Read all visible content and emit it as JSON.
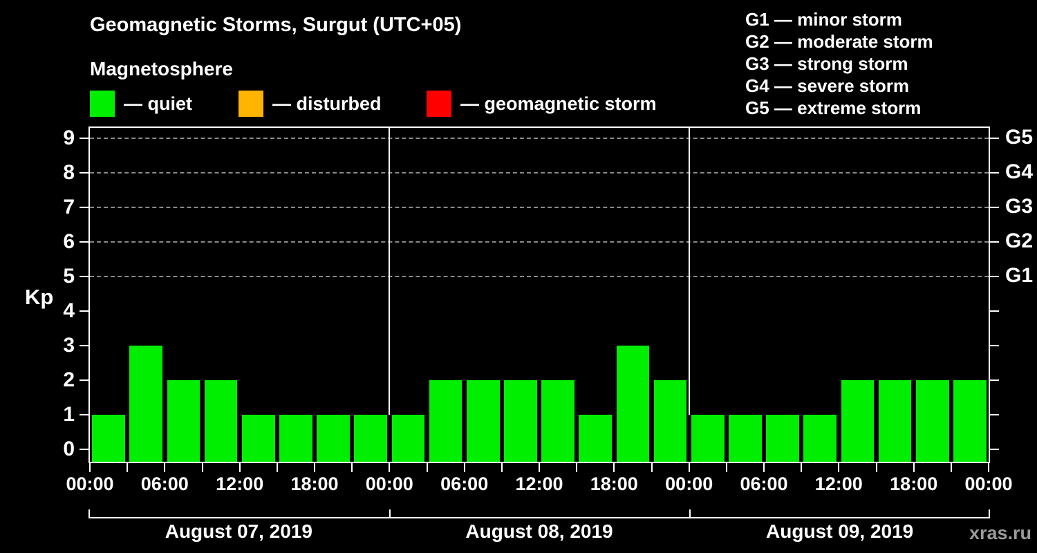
{
  "title": "Geomagnetic Storms, Surgut (UTC+05)",
  "subtitle": "Magnetosphere",
  "legend": {
    "items": [
      {
        "key": "quiet",
        "label": "— quiet",
        "color": "#00EE00"
      },
      {
        "key": "disturbed",
        "label": "— disturbed",
        "color": "#FFB400"
      },
      {
        "key": "storm",
        "label": "— geomagnetic storm",
        "color": "#FF0000"
      }
    ]
  },
  "g_scale": [
    "G1 — minor storm",
    "G2 — moderate storm",
    "G3 — strong storm",
    "G4 — severe storm",
    "G5 — extreme storm"
  ],
  "watermark": "xras.ru",
  "chart_data": {
    "type": "bar",
    "title": "Geomagnetic Storms, Surgut (UTC+05)",
    "xlabel": "",
    "ylabel": "Kp",
    "ylim": [
      0,
      9
    ],
    "y_ticks": [
      0,
      1,
      2,
      3,
      4,
      5,
      6,
      7,
      8,
      9
    ],
    "grid_kp_levels": [
      5,
      6,
      7,
      8,
      9
    ],
    "grid_color": "#8a8a8a",
    "right_axis": [
      {
        "kp": 5,
        "label": "G1"
      },
      {
        "kp": 6,
        "label": "G2"
      },
      {
        "kp": 7,
        "label": "G3"
      },
      {
        "kp": 8,
        "label": "G4"
      },
      {
        "kp": 9,
        "label": "G5"
      }
    ],
    "x_tick_labels": [
      "00:00",
      "06:00",
      "12:00",
      "18:00",
      "00:00",
      "06:00",
      "12:00",
      "18:00",
      "00:00",
      "06:00",
      "12:00",
      "18:00",
      "00:00"
    ],
    "interval_hours": 3,
    "bars_status": "quiet",
    "series": [
      {
        "date": "August 07, 2019",
        "kp_values": [
          1,
          3,
          2,
          2,
          1,
          1,
          1,
          1
        ]
      },
      {
        "date": "August 08, 2019",
        "kp_values": [
          1,
          2,
          2,
          2,
          2,
          1,
          3,
          2
        ]
      },
      {
        "date": "August 09, 2019",
        "kp_values": [
          1,
          1,
          1,
          1,
          2,
          2,
          2,
          2
        ]
      }
    ],
    "partial_next_bar_kp": 2
  }
}
